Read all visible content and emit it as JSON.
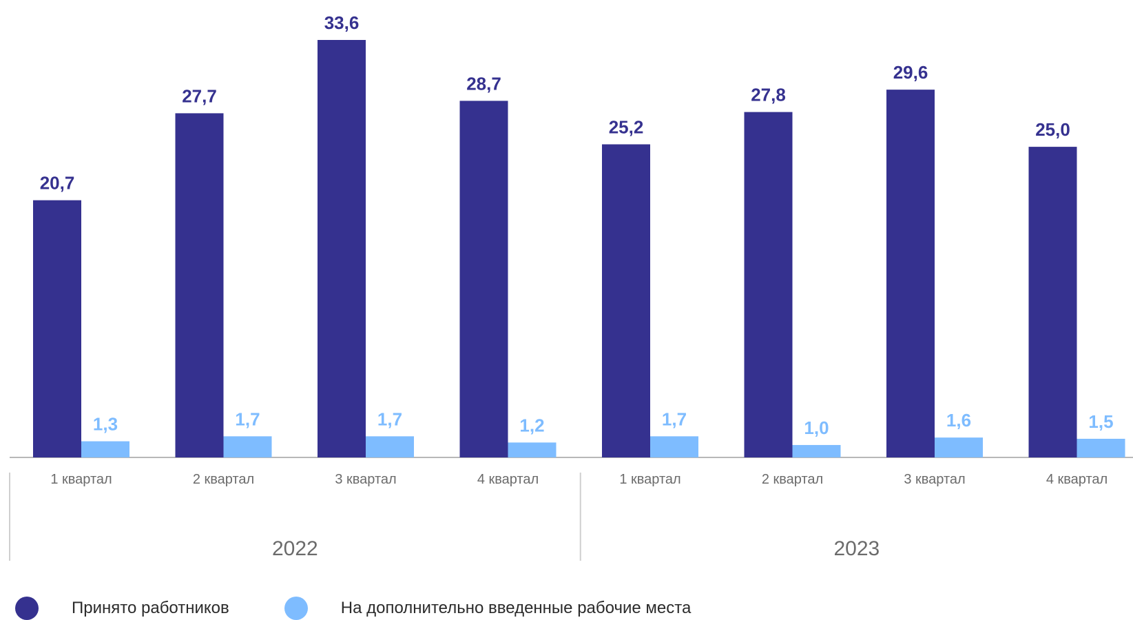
{
  "chart_data": {
    "type": "bar",
    "categories": [
      "1 квартал",
      "2 квартал",
      "3 квартал",
      "4 квартал",
      "1 квартал",
      "2 квартал",
      "3 квартал",
      "4 квартал"
    ],
    "groups": [
      {
        "label": "2022",
        "categories": 4
      },
      {
        "label": "2023",
        "categories": 4
      }
    ],
    "series": [
      {
        "name": "Принято работников",
        "color": "#35318f",
        "values": [
          20.7,
          27.7,
          33.6,
          28.7,
          25.2,
          27.8,
          29.6,
          25.0
        ],
        "labels": [
          "20,7",
          "27,7",
          "33,6",
          "28,7",
          "25,2",
          "27,8",
          "29,6",
          "25,0"
        ]
      },
      {
        "name": "На дополнительно введенные рабочие места",
        "color": "#7ebcff",
        "values": [
          1.3,
          1.7,
          1.7,
          1.2,
          1.7,
          1.0,
          1.6,
          1.5
        ],
        "labels": [
          "1,3",
          "1,7",
          "1,7",
          "1,2",
          "1,7",
          "1,0",
          "1,6",
          "1,5"
        ]
      }
    ],
    "ylim": [
      0,
      33.6
    ],
    "grid": false,
    "legend_position": "bottom-left"
  }
}
